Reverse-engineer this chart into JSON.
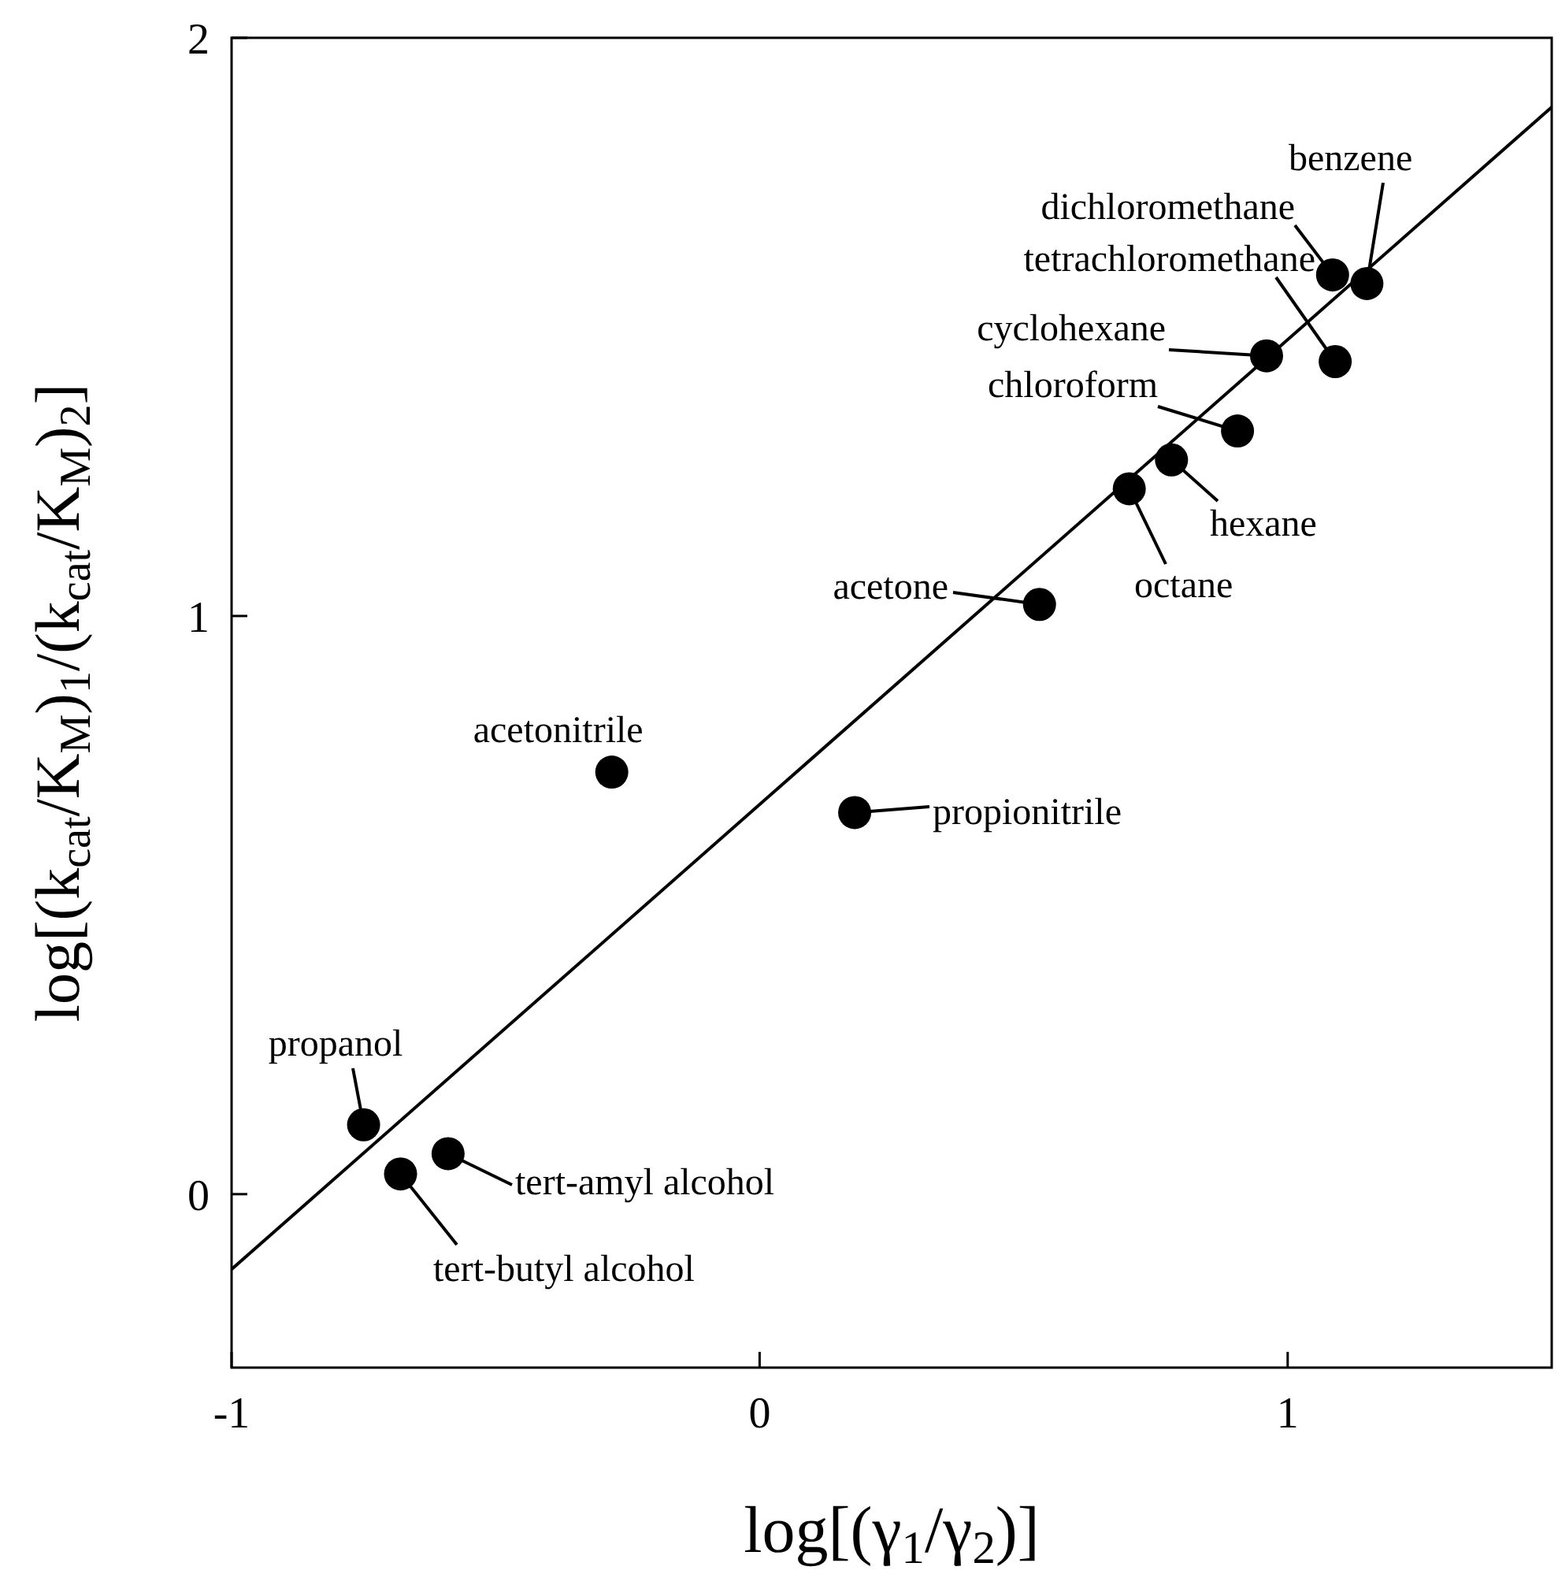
{
  "chart_data": {
    "type": "scatter",
    "xlabel": "log[(γ$_{1}$/γ$_{2}$)]",
    "ylabel": "log[(k$_{cat}$/K$_{M}$)$_{1}$/(k$_{cat}$/K$_{M}$)$_{2}$]",
    "xlim": [
      -1,
      1.5
    ],
    "ylim": [
      -0.3,
      2
    ],
    "xticks": [
      -1,
      0,
      1
    ],
    "yticks": [
      0,
      1,
      2
    ],
    "grid": false,
    "marker": "circle",
    "series": [
      {
        "color": "#000000",
        "x": [
          -0.75,
          -0.68,
          -0.59,
          -0.28,
          0.18,
          0.53,
          0.7,
          0.78,
          0.905,
          0.96,
          1.09,
          1.085,
          1.15
        ],
        "values": [
          0.12,
          0.035,
          0.07,
          0.73,
          0.66,
          1.02,
          1.22,
          1.27,
          1.32,
          1.45,
          1.44,
          1.59,
          1.575
        ]
      },
      {
        "type": "line",
        "marker": "none",
        "color": "#000000",
        "line_style": "solid",
        "x": [
          -1,
          1.5
        ],
        "values": [
          -0.13,
          1.88
        ]
      }
    ],
    "annotations": [
      {
        "text": "propanol",
        "x": -0.75,
        "y": 0.12
      },
      {
        "text": "tert-butyl alcohol",
        "x": -0.68,
        "y": 0.035
      },
      {
        "text": "tert-amyl alcohol",
        "x": -0.59,
        "y": 0.07
      },
      {
        "text": "acetonitrile",
        "x": -0.28,
        "y": 0.73
      },
      {
        "text": "propionitrile",
        "x": 0.18,
        "y": 0.66
      },
      {
        "text": "acetone",
        "x": 0.53,
        "y": 1.02
      },
      {
        "text": "octane",
        "x": 0.7,
        "y": 1.22
      },
      {
        "text": "hexane",
        "x": 0.78,
        "y": 1.27
      },
      {
        "text": "chloroform",
        "x": 0.905,
        "y": 1.32
      },
      {
        "text": "cyclohexane",
        "x": 0.96,
        "y": 1.45
      },
      {
        "text": "tetrachloromethane",
        "x": 1.09,
        "y": 1.44
      },
      {
        "text": "dichloromethane",
        "x": 1.085,
        "y": 1.59
      },
      {
        "text": "benzene",
        "x": 1.15,
        "y": 1.575
      }
    ]
  }
}
